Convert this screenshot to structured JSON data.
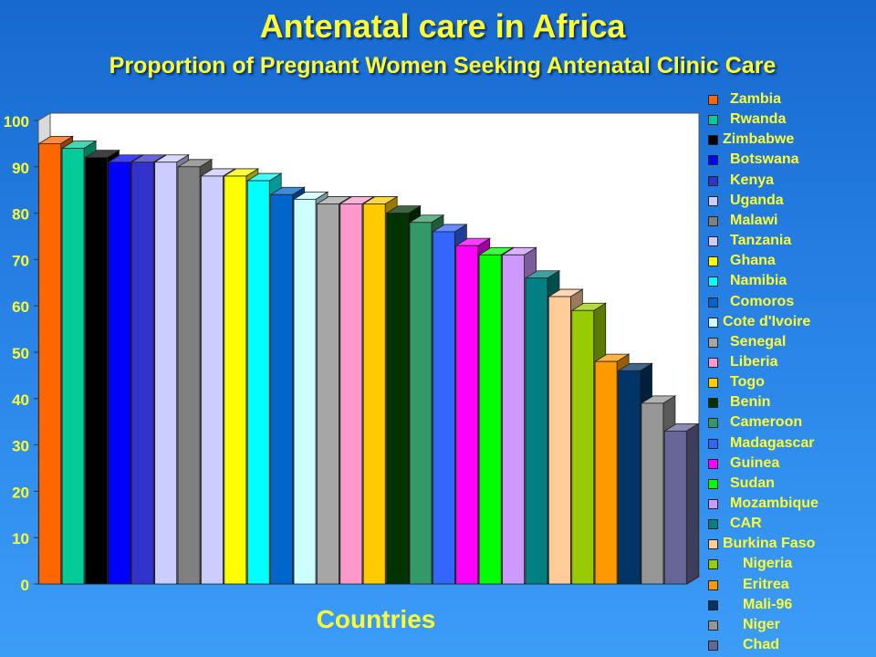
{
  "title": "Antenatal care in Africa",
  "subtitle": "Proportion of Pregnant Women Seeking Antenatal Clinic Care",
  "chart_data": {
    "type": "bar",
    "title": "Antenatal care in Africa",
    "subtitle": "Proportion of Pregnant Women Seeking Antenatal Clinic Care",
    "xlabel": "Countries",
    "ylabel": "",
    "ylim": [
      0,
      100
    ],
    "yticks": [
      "0",
      "10",
      "20",
      "30",
      "40",
      "50",
      "60",
      "70",
      "80",
      "90",
      "100"
    ],
    "grid": false,
    "legend_position": "right",
    "series": [
      {
        "name": "Zambia",
        "value": 95,
        "color": "#ff6600"
      },
      {
        "name": "Rwanda",
        "value": 94,
        "color": "#00cc99"
      },
      {
        "name": "Zimbabwe",
        "value": 92,
        "color": "#000000"
      },
      {
        "name": "Botswana",
        "value": 91,
        "color": "#0000ff"
      },
      {
        "name": "Kenya",
        "value": 91,
        "color": "#3333cc"
      },
      {
        "name": "Uganda",
        "value": 91,
        "color": "#ccccff"
      },
      {
        "name": "Malawi",
        "value": 90,
        "color": "#808080"
      },
      {
        "name": "Tanzania",
        "value": 88,
        "color": "#ccccff"
      },
      {
        "name": "Ghana",
        "value": 88,
        "color": "#ffff00"
      },
      {
        "name": "Namibia",
        "value": 87,
        "color": "#00ffff"
      },
      {
        "name": "Comoros",
        "value": 84,
        "color": "#0066cc"
      },
      {
        "name": "Cote d'Ivoire",
        "value": 83,
        "color": "#ccffff"
      },
      {
        "name": "Senegal",
        "value": 82,
        "color": "#a6a6a6"
      },
      {
        "name": "Liberia",
        "value": 82,
        "color": "#ff99cc"
      },
      {
        "name": "Togo",
        "value": 82,
        "color": "#ffcc00"
      },
      {
        "name": "Benin",
        "value": 80,
        "color": "#003300"
      },
      {
        "name": "Cameroon",
        "value": 78,
        "color": "#339966"
      },
      {
        "name": "Madagascar",
        "value": 76,
        "color": "#3366ff"
      },
      {
        "name": "Guinea",
        "value": 73,
        "color": "#ff00ff"
      },
      {
        "name": "Sudan",
        "value": 71,
        "color": "#00ff00"
      },
      {
        "name": "Mozambique",
        "value": 71,
        "color": "#cc99ff"
      },
      {
        "name": "CAR",
        "value": 66,
        "color": "#008080"
      },
      {
        "name": "Burkina Faso",
        "value": 62,
        "color": "#ffcc99"
      },
      {
        "name": "Nigeria",
        "value": 59,
        "color": "#99cc00"
      },
      {
        "name": "Eritrea",
        "value": 48,
        "color": "#ff9900"
      },
      {
        "name": "Mali-96",
        "value": 46,
        "color": "#003366"
      },
      {
        "name": "Niger",
        "value": 39,
        "color": "#969696"
      },
      {
        "name": "Chad",
        "value": 33,
        "color": "#666699"
      }
    ]
  }
}
